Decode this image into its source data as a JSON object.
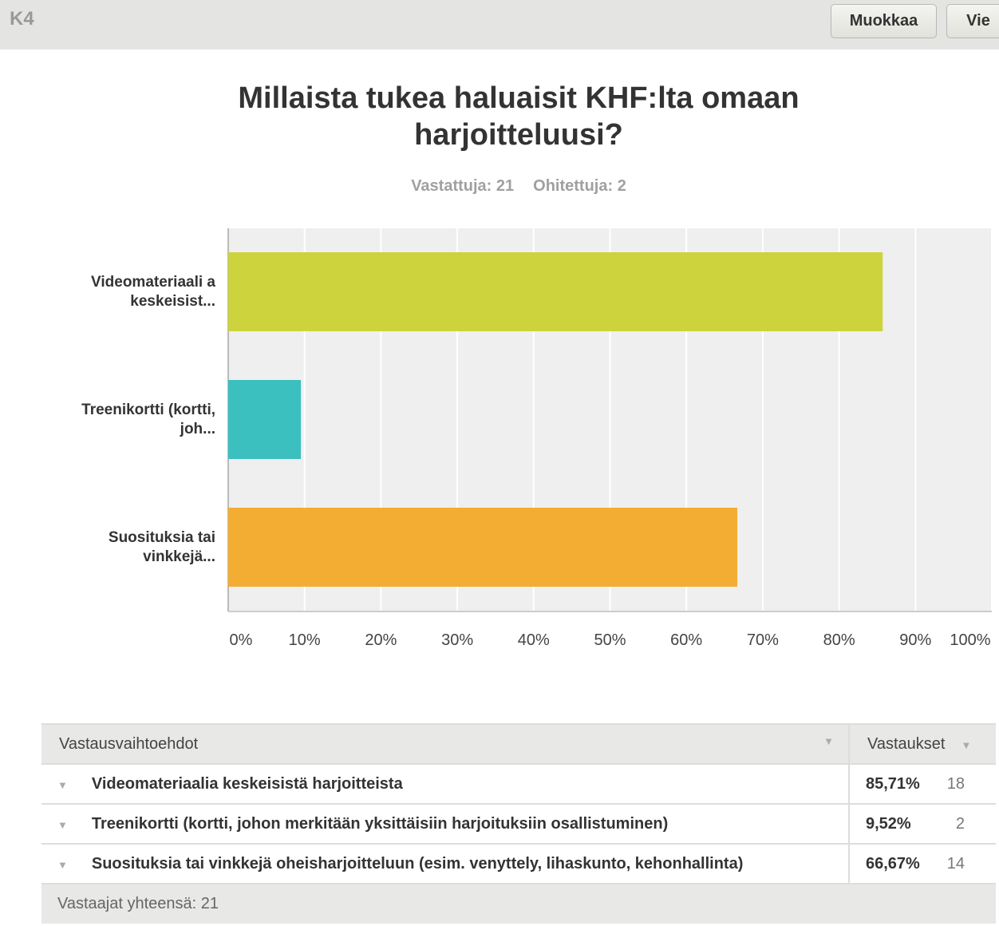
{
  "header": {
    "question_id": "K4",
    "edit_label": "Muokkaa",
    "export_label": "Vie"
  },
  "question": {
    "title": "Millaista tukea haluaisit KHF:lta omaan harjoitteluusi?",
    "answered": "Vastattuja: 21",
    "skipped": "Ohitettuja: 2"
  },
  "chart_data": {
    "type": "bar",
    "orientation": "horizontal",
    "title": "Millaista tukea haluaisit KHF:lta omaan harjoitteluusi?",
    "categories": [
      "Videomateriaali a keskeisist...",
      "Treenikortti (kortti, joh...",
      "Suosituksia tai vinkkejä..."
    ],
    "values": [
      85.71,
      9.52,
      66.67
    ],
    "colors": [
      "#cdd33c",
      "#3bbfbf",
      "#f3ad33"
    ],
    "xlim": [
      0,
      100
    ],
    "xticks": [
      "0%",
      "10%",
      "20%",
      "30%",
      "40%",
      "50%",
      "60%",
      "70%",
      "80%",
      "90%",
      "100%"
    ],
    "grid": true
  },
  "table": {
    "col1": "Vastausvaihtoehdot",
    "col2": "Vastaukset",
    "rows": [
      {
        "label": "Videomateriaalia keskeisistä harjoitteista",
        "pct": "85,71%",
        "count": "18"
      },
      {
        "label": "Treenikortti (kortti, johon merkitään yksittäisiin harjoituksiin osallistuminen)",
        "pct": "9,52%",
        "count": "2"
      },
      {
        "label": "Suosituksia tai vinkkejä oheisharjoitteluun (esim. venyttely, lihaskunto, kehonhallinta)",
        "pct": "66,67%",
        "count": "14"
      }
    ],
    "footer": "Vastaajat yhteensä: 21"
  }
}
